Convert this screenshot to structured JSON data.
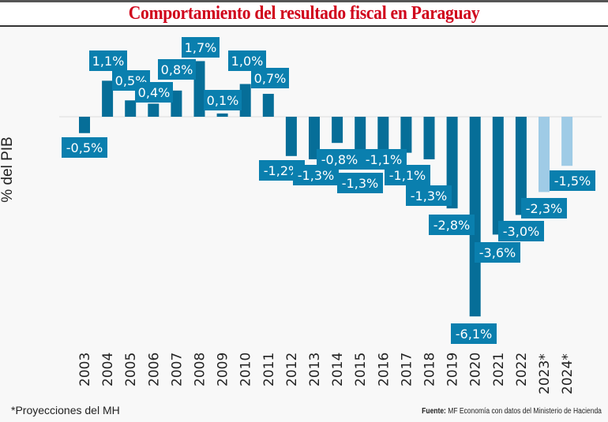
{
  "title": "Comportamiento del resultado fiscal en Paraguay",
  "colors": {
    "title": "#d0021b",
    "bar_actual": "#066e98",
    "bar_projection": "#9fcbe6",
    "label_bg": "#0a7fae",
    "label_text": "#ffffff"
  },
  "footnote": "*Proyecciones del MH",
  "source": {
    "prefix": "Fuente:",
    "text": "MF Economía con datos del Ministerio de Hacienda"
  },
  "chart_data": {
    "type": "bar",
    "title": "Comportamiento del resultado fiscal en Paraguay",
    "xlabel": "",
    "ylabel": "% del PIB",
    "ylim": [
      -6.1,
      1.7
    ],
    "grid": false,
    "legend": "none",
    "categories": [
      "2003",
      "2004",
      "2005",
      "2006",
      "2007",
      "2008",
      "2009",
      "2010",
      "2011",
      "2012",
      "2013",
      "2014",
      "2015",
      "2016",
      "2017",
      "2018",
      "2019",
      "2020",
      "2021",
      "2022",
      "2023*",
      "2024*"
    ],
    "values": [
      -0.5,
      1.1,
      0.5,
      0.4,
      0.8,
      1.7,
      0.1,
      1.0,
      0.7,
      -1.2,
      -1.3,
      -0.8,
      -1.3,
      -1.1,
      -1.1,
      -1.3,
      -2.8,
      -6.1,
      -3.6,
      -3.0,
      -2.3,
      -1.5
    ],
    "data_labels": [
      "-0,5%",
      "1,1%",
      "0,5%",
      "0,4%",
      "0,8%",
      "1,7%",
      "0,1%",
      "1,0%",
      "0,7%",
      "-1,2%",
      "-1,3%",
      "-0,8%",
      "-1,3%",
      "-1,1%",
      "-1,1%",
      "-1,3%",
      "-2,8%",
      "-6,1%",
      "-3,6%",
      "-3,0%",
      "-2,3%",
      "-1,5%"
    ],
    "projection": [
      false,
      false,
      false,
      false,
      false,
      false,
      false,
      false,
      false,
      false,
      false,
      false,
      false,
      false,
      false,
      false,
      false,
      false,
      false,
      false,
      true,
      true
    ]
  }
}
